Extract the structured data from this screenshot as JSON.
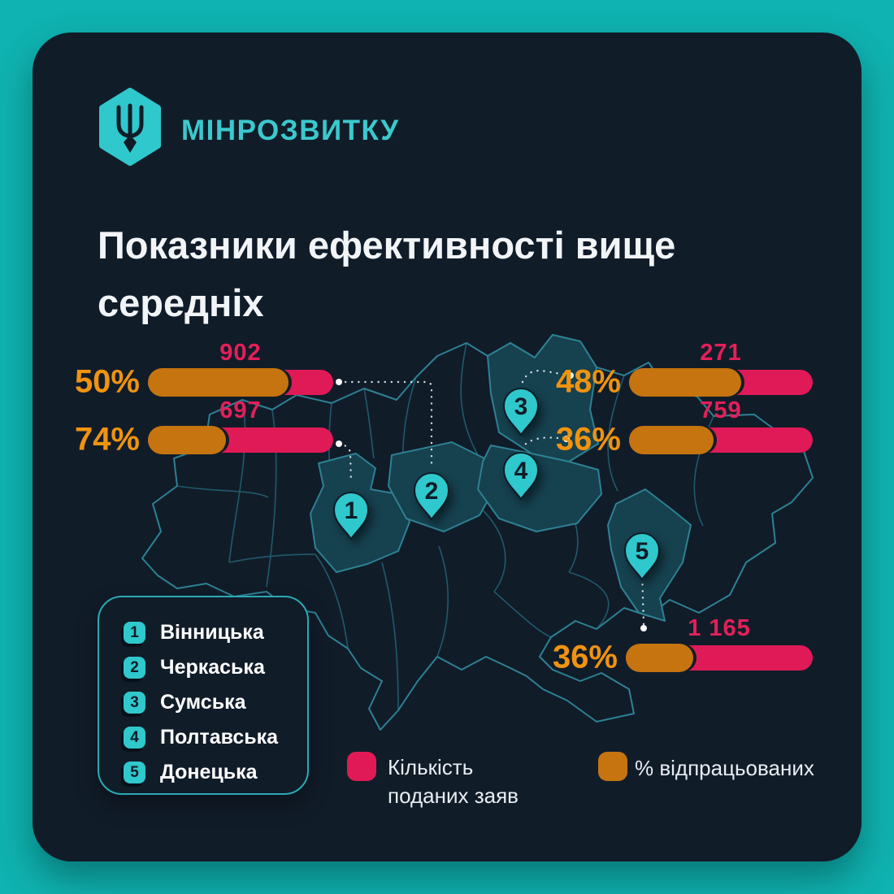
{
  "header": {
    "logo_text": "МІНРОЗВИТКУ",
    "logo_icon": "ukraine-trident-hexagon"
  },
  "title": {
    "line1": "Показники ефективності вище",
    "line2": "середніх"
  },
  "chart_data": {
    "type": "bar",
    "title": "Показники ефективності вище середніх",
    "categories": [
      "Вінницька",
      "Черкаська",
      "Сумська",
      "Полтавська",
      "Донецька"
    ],
    "series": [
      {
        "name": "Кількість поданих заяв",
        "color": "#e01a57",
        "values": [
          697,
          902,
          271,
          759,
          1165
        ]
      },
      {
        "name": "% відпрацьованих",
        "color": "#c57410",
        "values": [
          "74%",
          "50%",
          "48%",
          "36%",
          "36%"
        ]
      }
    ],
    "legend_position": "bottom",
    "layout": "map-infographic"
  },
  "bars": [
    {
      "region": "Черкаська",
      "percent": "50%",
      "value": "902",
      "fill_fraction": 0.76
    },
    {
      "region": "Вінницька",
      "percent": "74%",
      "value": "697",
      "fill_fraction": 0.42
    },
    {
      "region": "Сумська",
      "percent": "48%",
      "value": "271",
      "fill_fraction": 0.61
    },
    {
      "region": "Полтавська",
      "percent": "36%",
      "value": "759",
      "fill_fraction": 0.46
    },
    {
      "region": "Донецька",
      "percent": "36%",
      "value": "1 165",
      "fill_fraction": 0.36
    }
  ],
  "map": {
    "country": "Ukraine",
    "pins": [
      {
        "num": "1"
      },
      {
        "num": "2"
      },
      {
        "num": "3"
      },
      {
        "num": "4"
      },
      {
        "num": "5"
      }
    ]
  },
  "region_legend": {
    "items": [
      {
        "num": "1",
        "name": "Вінницька"
      },
      {
        "num": "2",
        "name": "Черкаська"
      },
      {
        "num": "3",
        "name": "Сумська"
      },
      {
        "num": "4",
        "name": "Полтавська"
      },
      {
        "num": "5",
        "name": "Донецька"
      }
    ]
  },
  "series_legend": {
    "applications": {
      "line1": "Кількість",
      "line2": "поданих заяв",
      "color": "#e01a57"
    },
    "processed": {
      "label": "% відпрацьованих",
      "color": "#c57410"
    }
  },
  "colors": {
    "background": "#0fb3b1",
    "card": "#111c29",
    "accent_teal": "#2fc8cc",
    "bar_pink": "#e01a57",
    "bar_orange": "#c57410",
    "percent_text": "#f0930f",
    "value_text": "#e32059",
    "map_stroke": "#2d8193",
    "map_highlight_fill": "#16414f"
  }
}
